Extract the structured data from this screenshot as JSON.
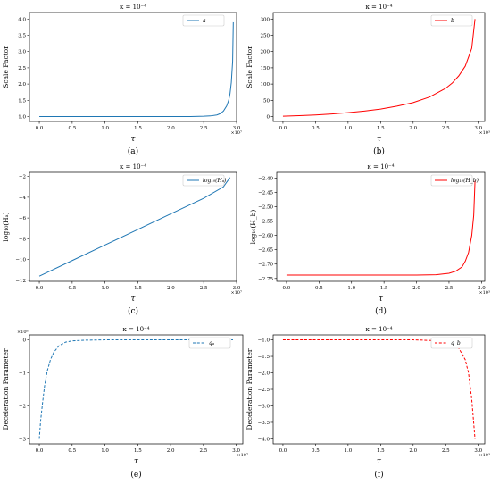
{
  "chart_data": [
    {
      "type": "line",
      "title": "κ = 10⁻⁴",
      "xlabel": "τ",
      "ylabel": "Scale Factor",
      "x_multiplier": "×10⁷",
      "caption": "(a)",
      "xlim": [
        -0.15,
        3.0
      ],
      "ylim": [
        0.85,
        4.2
      ],
      "xticks": [
        "0.0",
        "0.5",
        "1.0",
        "1.5",
        "2.0",
        "2.5",
        "3.0"
      ],
      "yticks": [
        "1.0",
        "1.5",
        "2.0",
        "2.5",
        "3.0",
        "3.5",
        "4.0"
      ],
      "legend": "top-right",
      "series": [
        {
          "name": "a",
          "style": "solid",
          "color": "#1f77b4",
          "x": [
            0.0,
            0.5,
            1.0,
            1.5,
            2.0,
            2.3,
            2.5,
            2.6,
            2.7,
            2.75,
            2.8,
            2.85,
            2.88,
            2.9,
            2.92,
            2.94,
            2.95
          ],
          "y": [
            1.0,
            1.0,
            1.0,
            1.0,
            1.0,
            1.002,
            1.01,
            1.02,
            1.05,
            1.09,
            1.17,
            1.33,
            1.5,
            1.7,
            2.05,
            2.7,
            3.9
          ]
        }
      ]
    },
    {
      "type": "line",
      "title": "κ = 10⁻⁴",
      "xlabel": "τ",
      "ylabel": "Scale Factor",
      "x_multiplier": "×10³",
      "caption": "(b)",
      "xlim": [
        -0.15,
        3.1
      ],
      "ylim": [
        -15,
        320
      ],
      "xticks": [
        "0.0",
        "0.5",
        "1.0",
        "1.5",
        "2.0",
        "2.5",
        "3.0"
      ],
      "yticks": [
        "0",
        "50",
        "100",
        "150",
        "200",
        "250",
        "300"
      ],
      "legend": "top-right",
      "series": [
        {
          "name": "b",
          "style": "solid",
          "color": "#ff0000",
          "x": [
            0.0,
            0.25,
            0.5,
            0.75,
            1.0,
            1.25,
            1.5,
            1.75,
            2.0,
            2.25,
            2.5,
            2.6,
            2.7,
            2.8,
            2.9,
            2.95
          ],
          "y": [
            1,
            3,
            5,
            8,
            12,
            17,
            23,
            32,
            43,
            60,
            87,
            103,
            125,
            155,
            210,
            300
          ]
        }
      ]
    },
    {
      "type": "line",
      "title": "κ = 10⁻⁴",
      "xlabel": "τ",
      "ylabel": "log₁₀(Hₐ)",
      "x_multiplier": "×10⁷",
      "caption": "(c)",
      "xlim": [
        -0.15,
        3.0
      ],
      "ylim": [
        -12.1,
        -1.6
      ],
      "xticks": [
        "0.0",
        "0.5",
        "1.0",
        "1.5",
        "2.0",
        "2.5",
        "3.0"
      ],
      "yticks": [
        "−2",
        "−4",
        "−6",
        "−8",
        "−10",
        "−12"
      ],
      "ytick_values": [
        -2,
        -4,
        -6,
        -8,
        -10,
        -12
      ],
      "legend": "top-right",
      "series": [
        {
          "name": "log₁₀(Hₐ)",
          "style": "solid",
          "color": "#1f77b4",
          "x": [
            0.0,
            0.5,
            1.0,
            1.5,
            2.0,
            2.5,
            2.8,
            2.9
          ],
          "y": [
            -11.6,
            -10.1,
            -8.6,
            -7.1,
            -5.6,
            -4.1,
            -3.0,
            -2.1
          ]
        }
      ]
    },
    {
      "type": "line",
      "title": "κ = 10⁻⁴",
      "xlabel": "τ",
      "ylabel": "log₁₀(H_b)",
      "x_multiplier": "×10³",
      "caption": "(d)",
      "xlim": [
        -0.15,
        3.05
      ],
      "ylim": [
        -2.76,
        -2.38
      ],
      "xticks": [
        "0.0",
        "0.5",
        "1.0",
        "1.5",
        "2.0",
        "2.5",
        "3.0"
      ],
      "yticks": [
        "−2.40",
        "−2.45",
        "−2.50",
        "−2.55",
        "−2.60",
        "−2.65",
        "−2.70",
        "−2.75"
      ],
      "ytick_values": [
        -2.4,
        -2.45,
        -2.5,
        -2.55,
        -2.6,
        -2.65,
        -2.7,
        -2.75
      ],
      "legend": "top-right",
      "series": [
        {
          "name": "log₁₀(H_b)",
          "style": "solid",
          "color": "#ff0000",
          "x": [
            0.0,
            0.5,
            1.0,
            1.5,
            2.0,
            2.3,
            2.5,
            2.6,
            2.7,
            2.75,
            2.8,
            2.85,
            2.88,
            2.9
          ],
          "y": [
            -2.738,
            -2.738,
            -2.738,
            -2.738,
            -2.738,
            -2.737,
            -2.732,
            -2.725,
            -2.71,
            -2.69,
            -2.66,
            -2.6,
            -2.53,
            -2.41
          ]
        }
      ]
    },
    {
      "type": "line",
      "title": "κ = 10⁻⁴",
      "xlabel": "τ",
      "ylabel": "Deceleration Parameter",
      "x_multiplier": "×10⁷",
      "y_multiplier": "×10⁸",
      "caption": "(e)",
      "xlim": [
        -0.15,
        3.1
      ],
      "ylim": [
        -3.15,
        0.15
      ],
      "xticks": [
        "0.0",
        "0.5",
        "1.0",
        "1.5",
        "2.0",
        "2.5",
        "3.0"
      ],
      "yticks": [
        "0",
        "−1",
        "−2",
        "−3"
      ],
      "ytick_values": [
        0,
        -1,
        -2,
        -3
      ],
      "legend": "top-right",
      "series": [
        {
          "name": "qₐ",
          "style": "dashed",
          "color": "#1f77b4",
          "x": [
            0.0,
            0.02,
            0.05,
            0.08,
            0.12,
            0.17,
            0.22,
            0.3,
            0.4,
            0.5,
            0.7,
            1.0,
            1.5,
            2.0,
            2.5,
            2.95
          ],
          "y": [
            -3.0,
            -2.45,
            -1.9,
            -1.4,
            -0.95,
            -0.6,
            -0.38,
            -0.18,
            -0.07,
            -0.03,
            -0.01,
            0,
            0,
            0,
            0,
            0
          ]
        }
      ]
    },
    {
      "type": "line",
      "title": "κ = 10⁻⁴",
      "xlabel": "τ",
      "ylabel": "Deceleration Parameter",
      "x_multiplier": "×10³",
      "caption": "(f)",
      "xlim": [
        -0.15,
        3.1
      ],
      "ylim": [
        -4.15,
        -0.85
      ],
      "xticks": [
        "0.0",
        "0.5",
        "1.0",
        "1.5",
        "2.0",
        "2.5",
        "3.0"
      ],
      "yticks": [
        "−1.0",
        "−1.5",
        "−2.0",
        "−2.5",
        "−3.0",
        "−3.5",
        "−4.0"
      ],
      "ytick_values": [
        -1.0,
        -1.5,
        -2.0,
        -2.5,
        -3.0,
        -3.5,
        -4.0
      ],
      "legend": "top-right",
      "series": [
        {
          "name": "q_b",
          "style": "dashed",
          "color": "#ff0000",
          "x": [
            0.0,
            0.5,
            1.0,
            1.5,
            2.0,
            2.3,
            2.5,
            2.6,
            2.7,
            2.8,
            2.85,
            2.9,
            2.95
          ],
          "y": [
            -1.0,
            -1.0,
            -1.0,
            -1.0,
            -1.0,
            -1.02,
            -1.06,
            -1.12,
            -1.25,
            -1.6,
            -2.0,
            -2.8,
            -4.0
          ]
        }
      ]
    }
  ]
}
